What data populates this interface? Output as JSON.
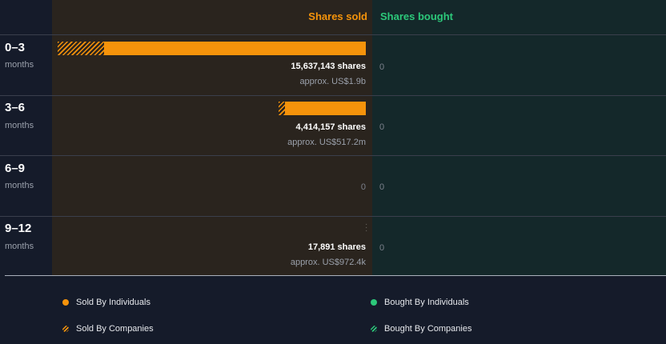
{
  "chart_data": {
    "type": "bar",
    "orientation": "horizontal",
    "headers": {
      "sold": "Shares sold",
      "bought": "Shares bought"
    },
    "categories": [
      {
        "period": "0–3",
        "unit": "months"
      },
      {
        "period": "3–6",
        "unit": "months"
      },
      {
        "period": "6–9",
        "unit": "months"
      },
      {
        "period": "9–12",
        "unit": "months"
      }
    ],
    "series": [
      {
        "name": "Sold By Individuals",
        "values": [
          13287000,
          4110000,
          0,
          17891
        ]
      },
      {
        "name": "Sold By Companies",
        "values": [
          2350143,
          304157,
          0,
          0
        ]
      },
      {
        "name": "Bought By Individuals",
        "values": [
          0,
          0,
          0,
          0
        ]
      },
      {
        "name": "Bought By Companies",
        "values": [
          0,
          0,
          0,
          0
        ]
      }
    ],
    "sold_totals": [
      15637143,
      4414157,
      0,
      17891
    ],
    "labels": [
      {
        "shares": "15,637,143 shares",
        "approx": "approx. US$1.9b",
        "bought": "0"
      },
      {
        "shares": "4,414,157 shares",
        "approx": "approx. US$517.2m",
        "bought": "0"
      },
      {
        "shares": "",
        "approx": "",
        "sold_zero": "0",
        "bought": "0"
      },
      {
        "shares": "17,891 shares",
        "approx": "approx. US$972.4k",
        "bought": "0"
      }
    ],
    "colors": {
      "sold": "#f5930b",
      "bought": "#2cc87a"
    }
  },
  "legend": {
    "sold_individuals": "Sold By Individuals",
    "sold_companies": "Sold By Companies",
    "bought_individuals": "Bought By Individuals",
    "bought_companies": "Bought By Companies"
  }
}
